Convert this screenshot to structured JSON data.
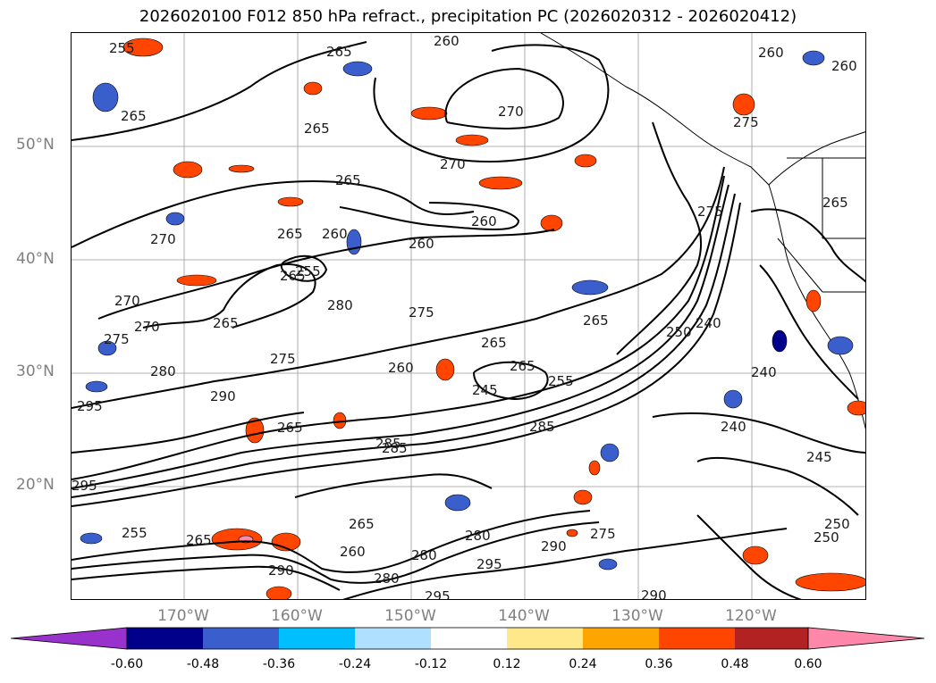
{
  "title": "2026020100 F012 850 hPa refract., precipitation PC (2026020312 - 2026020412)",
  "latitude_labels": [
    "50°N",
    "40°N",
    "30°N",
    "20°N"
  ],
  "longitude_labels": [
    "170°W",
    "160°W",
    "150°W",
    "140°W",
    "130°W",
    "120°W"
  ],
  "colorbar": {
    "ticks": [
      "-0.60",
      "-0.48",
      "-0.36",
      "-0.24",
      "-0.12",
      "0.12",
      "0.24",
      "0.36",
      "0.48",
      "0.60"
    ],
    "colors": [
      "#9932cc",
      "#00008b",
      "#3a5fcd",
      "#00bfff",
      "#b0e0ff",
      "#ffffff",
      "#ffe88a",
      "#ffa500",
      "#ff4500",
      "#b22222",
      "#ff88aa"
    ]
  },
  "contour_labels": [
    "255",
    "260",
    "265",
    "270",
    "275",
    "280",
    "285",
    "290",
    "295",
    "240",
    "245",
    "250"
  ],
  "contour_label_sequence": [
    "255",
    "265",
    "260",
    "265",
    "260",
    "270",
    "265",
    "270",
    "265",
    "260",
    "265",
    "270",
    "260",
    "260",
    "265",
    "255",
    "270",
    "280",
    "275",
    "270",
    "265",
    "275",
    "265",
    "275",
    "285",
    "280",
    "290",
    "260",
    "265",
    "265",
    "245",
    "255",
    "265",
    "275",
    "250",
    "240",
    "240",
    "265",
    "250",
    "295",
    "285",
    "295",
    "280",
    "295",
    "290",
    "255",
    "265",
    "290",
    "260",
    "280",
    "280",
    "285",
    "275",
    "250",
    "265",
    "295",
    "290",
    "260",
    "240",
    "275",
    "245"
  ]
}
